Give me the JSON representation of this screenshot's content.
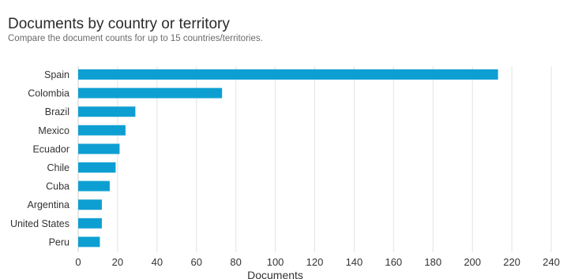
{
  "page": {
    "title": "Documents by country or territory",
    "subtitle": "Compare the document counts for up to 15 countries/territories."
  },
  "chart_data": {
    "type": "bar",
    "orientation": "horizontal",
    "categories": [
      "Spain",
      "Colombia",
      "Brazil",
      "Mexico",
      "Ecuador",
      "Chile",
      "Cuba",
      "Argentina",
      "United States",
      "Peru"
    ],
    "values": [
      213,
      73,
      29,
      24,
      21,
      19,
      16,
      12,
      12,
      11
    ],
    "xlabel": "Documents",
    "ylabel": "",
    "xlim": [
      0,
      240
    ],
    "xticks": [
      0,
      20,
      40,
      60,
      80,
      100,
      120,
      140,
      160,
      180,
      200,
      220,
      240
    ],
    "grid": true,
    "legend": "none",
    "colors": {
      "bar": "#0e9fd2",
      "grid": "#e3e3e3",
      "tick_text": "#333333"
    }
  }
}
